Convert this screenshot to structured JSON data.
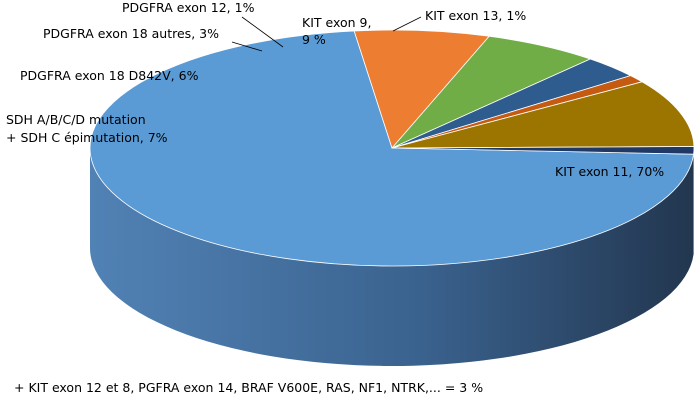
{
  "chart_data": {
    "type": "pie",
    "style": "3d",
    "slices": [
      {
        "label_lines": [
          "KIT exon 11, 70%"
        ],
        "value": 70,
        "color": "#5B9BD5",
        "side_color": "#3E6C96"
      },
      {
        "label_lines": [
          "SDH A/B/C/D mutation",
          "+ SDH C épimutation, 7%"
        ],
        "value": 7,
        "color": "#ED7D31",
        "side_color": "#A9561F"
      },
      {
        "label_lines": [
          "PDGFRA exon 18 D842V, 6%"
        ],
        "value": 6,
        "color": "#70AD47",
        "side_color": "#4E7A31"
      },
      {
        "label_lines": [
          "PDGFRA exon 18 autres, 3%"
        ],
        "value": 3,
        "color": "#2E5C8F",
        "side_color": "#1F3F62"
      },
      {
        "label_lines": [
          "PDGFRA exon 12, 1%"
        ],
        "value": 1,
        "color": "#C55A11",
        "side_color": "#8A3F0C"
      },
      {
        "label_lines": [
          "KIT exon 9,",
          "9 %"
        ],
        "value": 9,
        "color": "#9C7400",
        "side_color": "#6E5200"
      },
      {
        "label_lines": [
          "KIT exon 13, 1%"
        ],
        "value": 1,
        "color": "#203864",
        "side_color": "#142441"
      }
    ],
    "footnote": "+ KIT exon 12 et 8, PGFRA exon 14, BRAF V600E, RAS, NF1, NTRK,... = 3 %"
  }
}
